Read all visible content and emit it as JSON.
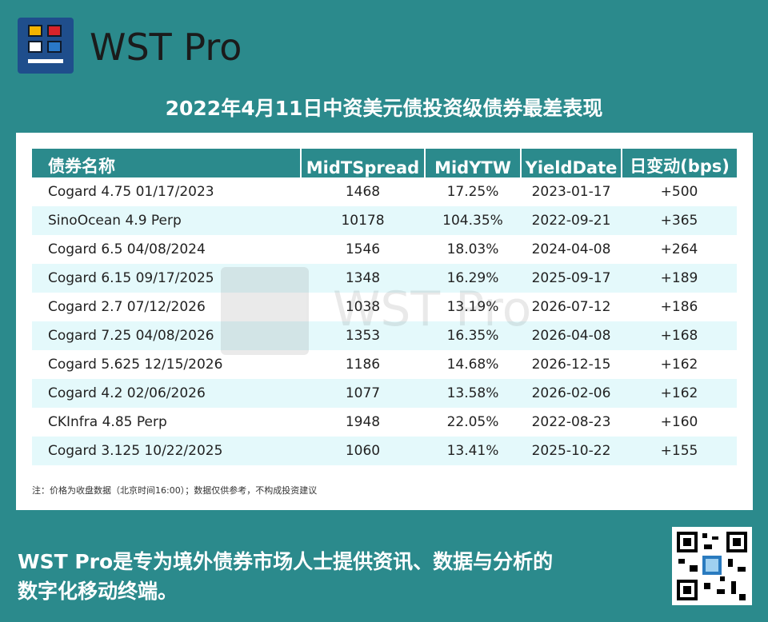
{
  "brand": {
    "name": "WST Pro"
  },
  "title": "2022年4月11日中资美元债投资级债券最差表现",
  "table": {
    "headers": [
      "债券名称",
      "MidTSpread",
      "MidYTW",
      "YieldDate",
      "日变动(bps)"
    ],
    "rows": [
      [
        "Cogard 4.75 01/17/2023",
        "1468",
        "17.25%",
        "2023-01-17",
        "+500"
      ],
      [
        "SinoOcean 4.9 Perp",
        "10178",
        "104.35%",
        "2022-09-21",
        "+365"
      ],
      [
        "Cogard 6.5 04/08/2024",
        "1546",
        "18.03%",
        "2024-04-08",
        "+264"
      ],
      [
        "Cogard 6.15 09/17/2025",
        "1348",
        "16.29%",
        "2025-09-17",
        "+189"
      ],
      [
        "Cogard 2.7 07/12/2026",
        "1038",
        "13.19%",
        "2026-07-12",
        "+186"
      ],
      [
        "Cogard 7.25 04/08/2026",
        "1353",
        "16.35%",
        "2026-04-08",
        "+168"
      ],
      [
        "Cogard 5.625 12/15/2026",
        "1186",
        "14.68%",
        "2026-12-15",
        "+162"
      ],
      [
        "Cogard 4.2 02/06/2026",
        "1077",
        "13.58%",
        "2026-02-06",
        "+162"
      ],
      [
        "CKInfra 4.85 Perp",
        "1948",
        "22.05%",
        "2022-08-23",
        "+160"
      ],
      [
        "Cogard 3.125 10/22/2025",
        "1060",
        "13.41%",
        "2025-10-22",
        "+155"
      ]
    ]
  },
  "note": "注：价格为收盘数据（北京时间16:00）；数据仅供参考，不构成投资建议",
  "watermark": {
    "text": "WST Pro"
  },
  "footer": {
    "line1": "WST Pro是专为境外债券市场人士提供资讯、数据与分析的",
    "line2": "数字化移动终端。"
  },
  "colors": {
    "background": "#2b8a8c",
    "header": "#2b8a8c",
    "row_alt": "#e4f9fb",
    "logo": "#1f4e8c",
    "logo_red": "#d8232a",
    "logo_yellow": "#f4b400"
  }
}
